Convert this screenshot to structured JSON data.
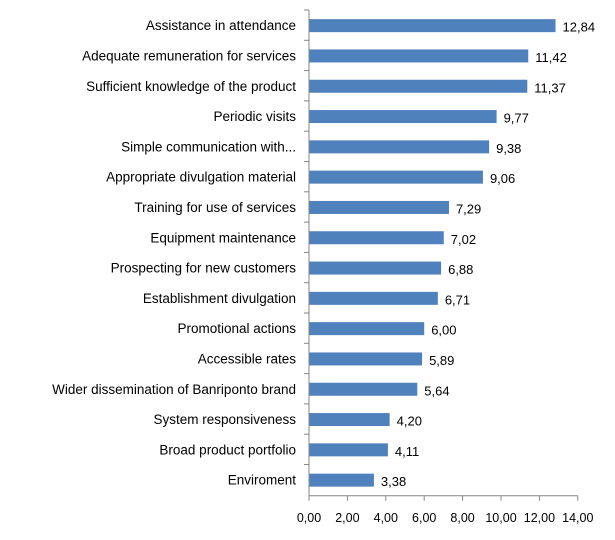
{
  "chart_data": {
    "type": "bar",
    "orientation": "horizontal",
    "categories": [
      "Assistance in attendance",
      "Adequate remuneration for services",
      "Sufficient knowledge of the product",
      "Periodic visits",
      "Simple communication with...",
      "Appropriate divulgation material",
      "Training for use of services",
      "Equipment maintenance",
      "Prospecting for new customers",
      "Establishment divulgation",
      "Promotional actions",
      "Accessible rates",
      "Wider dissemination of Banriponto brand",
      "System responsiveness",
      "Broad product portfolio",
      "Enviroment"
    ],
    "values": [
      12.84,
      11.42,
      11.37,
      9.77,
      9.38,
      9.06,
      7.29,
      7.02,
      6.88,
      6.71,
      6.0,
      5.89,
      5.64,
      4.2,
      4.11,
      3.38
    ],
    "value_labels": [
      "12,84",
      "11,42",
      "11,37",
      "9,77",
      "9,38",
      "9,06",
      "7,29",
      "7,02",
      "6,88",
      "6,71",
      "6,00",
      "5,89",
      "5,64",
      "4,20",
      "4,11",
      "3,38"
    ],
    "xticks": [
      0,
      2,
      4,
      6,
      8,
      10,
      12,
      14
    ],
    "xtick_labels": [
      "0,00",
      "2,00",
      "4,00",
      "6,00",
      "8,00",
      "10,00",
      "12,00",
      "14,00"
    ],
    "xlim": [
      0,
      14
    ],
    "grid": false,
    "legend": "none",
    "title": "",
    "xlabel": "",
    "ylabel": "",
    "bar_color": "#4F81BD"
  }
}
